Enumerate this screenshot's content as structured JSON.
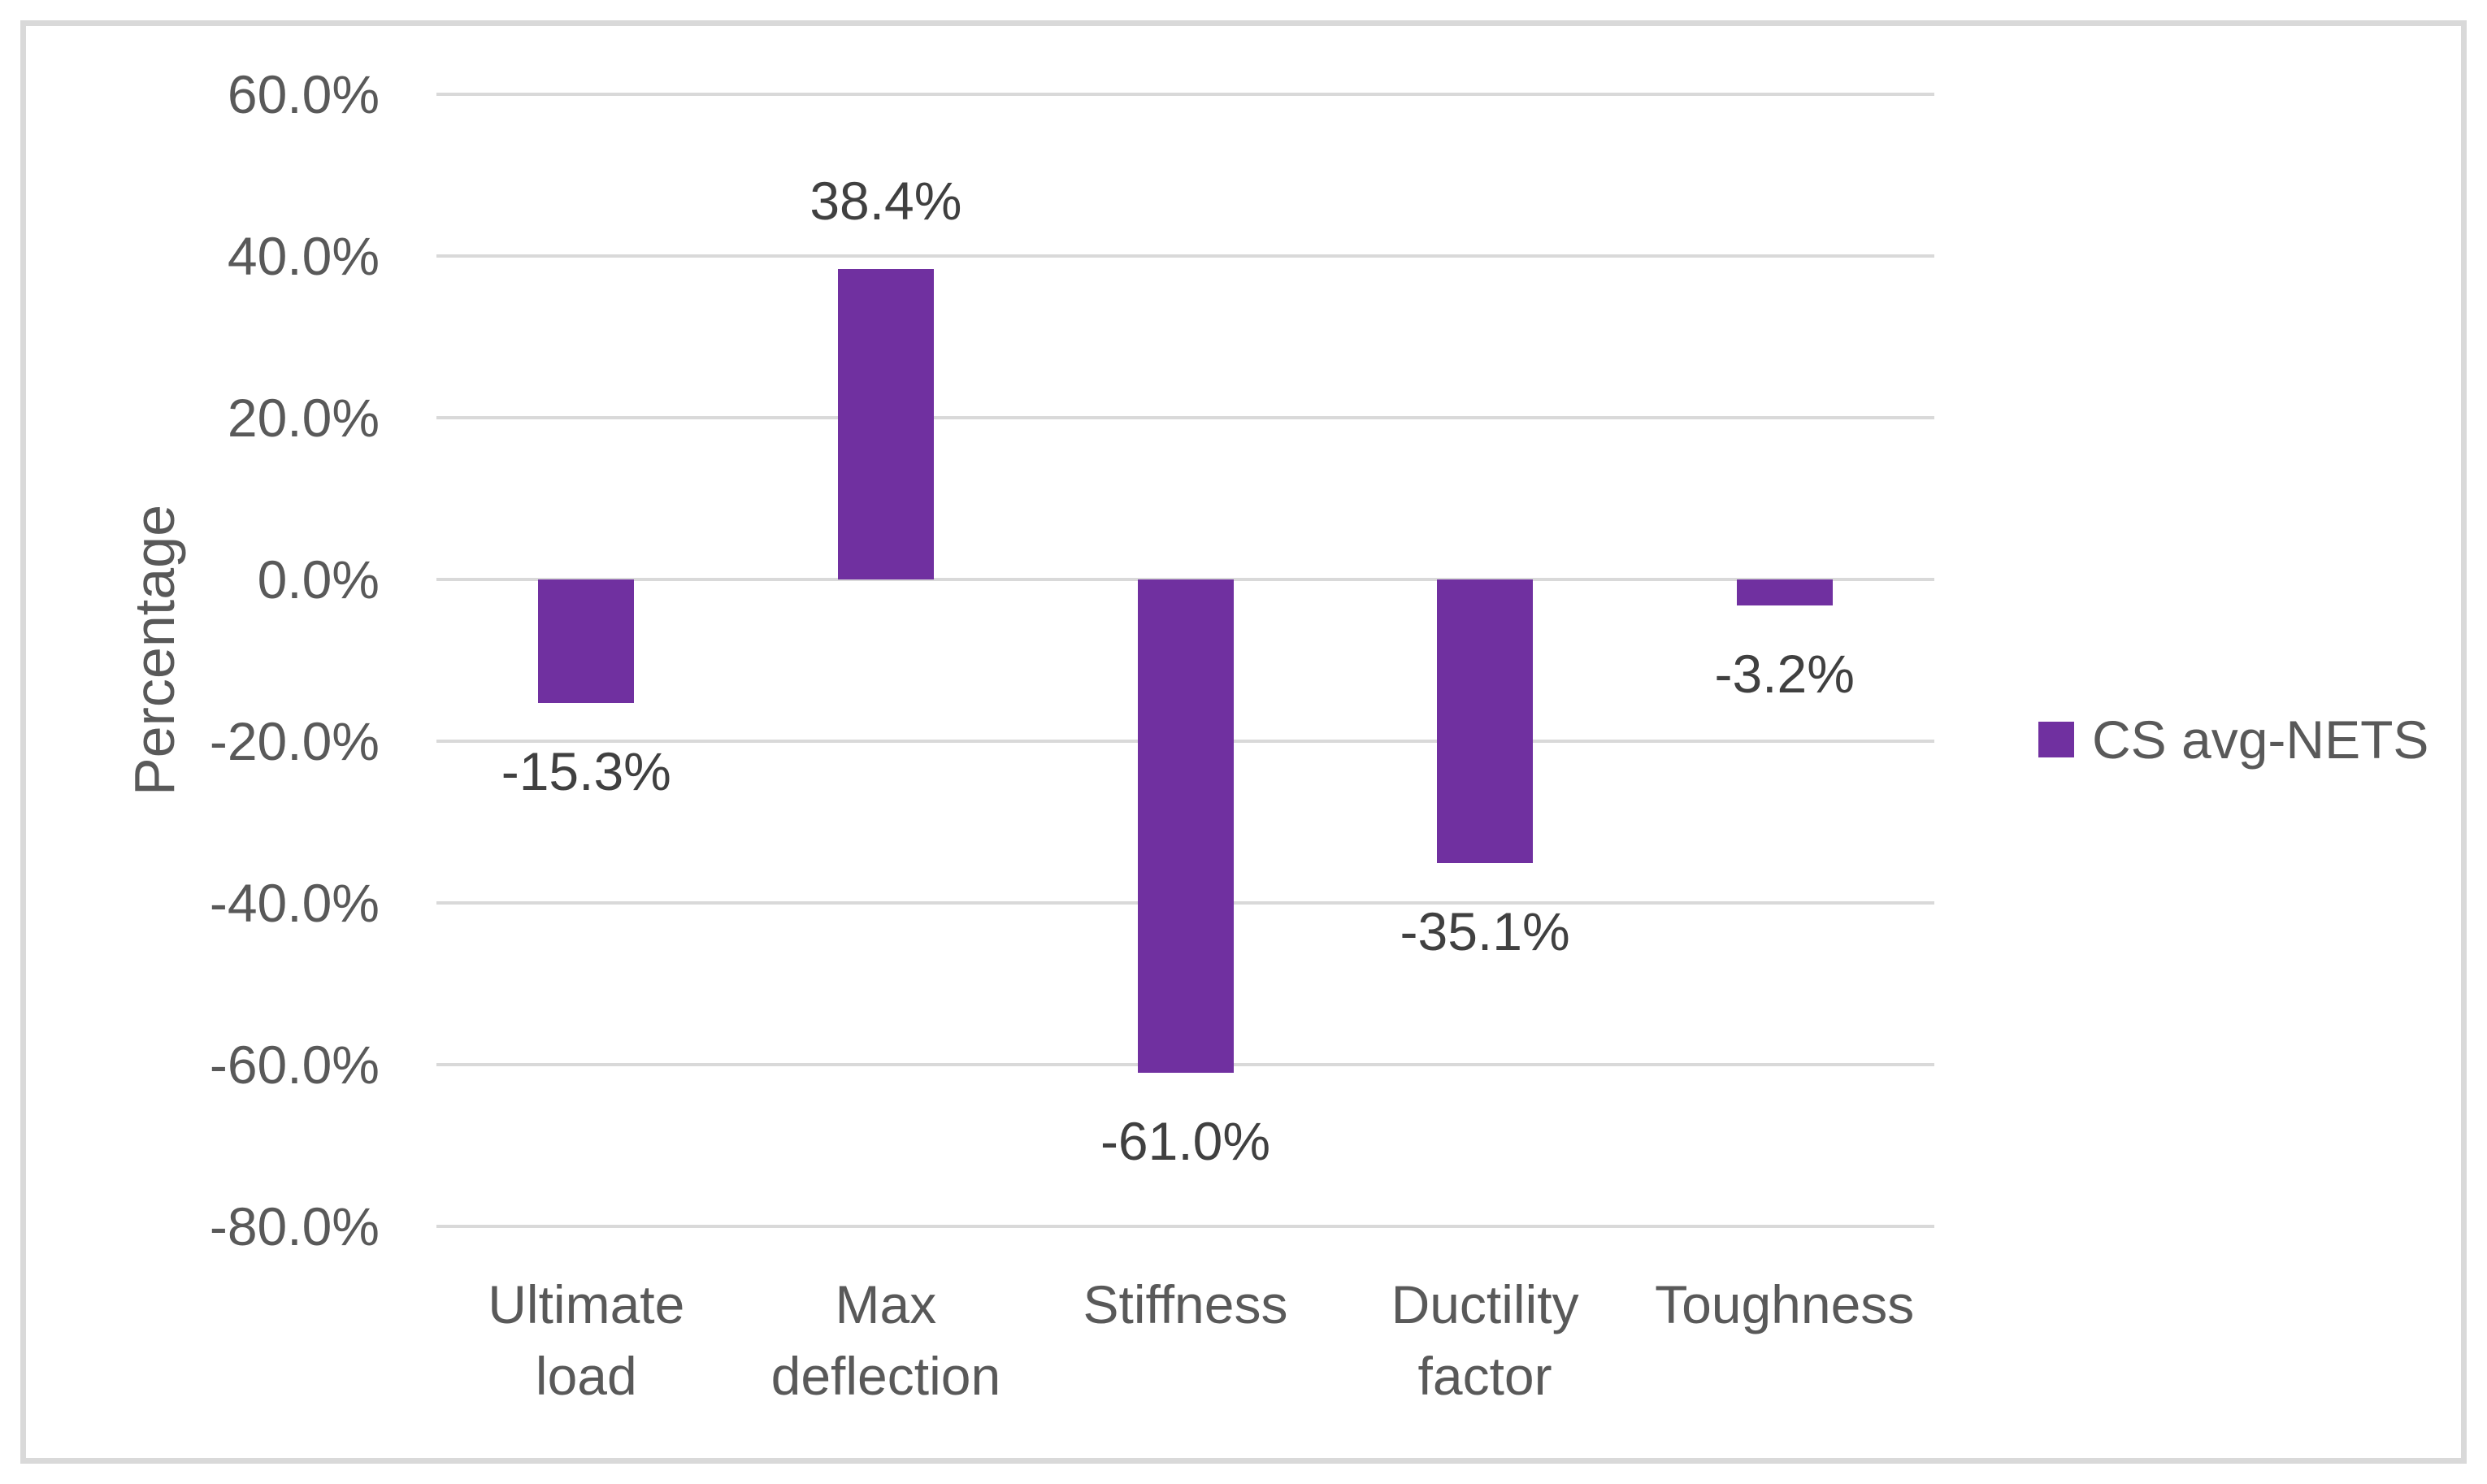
{
  "chart_data": {
    "type": "bar",
    "title": "",
    "ylabel": "Percentage",
    "categories": [
      "Ultimate load",
      "Max deflection",
      "Stiffness",
      "Ductility factor",
      "Toughness"
    ],
    "category_lines": [
      [
        "Ultimate",
        "load"
      ],
      [
        "Max",
        "deflection"
      ],
      [
        "Stiffness"
      ],
      [
        "Ductility",
        "factor"
      ],
      [
        "Toughness"
      ]
    ],
    "series": [
      {
        "name": "CS avg-NETS",
        "values": [
          -15.3,
          38.4,
          -61.0,
          -35.1,
          -3.2
        ]
      }
    ],
    "data_labels": [
      "-15.3%",
      "38.4%",
      "-61.0%",
      "-35.1%",
      "-3.2%"
    ],
    "y_ticks": [
      "60.0%",
      "40.0%",
      "20.0%",
      "0.0%",
      "-20.0%",
      "-40.0%",
      "-60.0%",
      "-80.0%"
    ],
    "y_tick_values": [
      60,
      40,
      20,
      0,
      -20,
      -40,
      -60,
      -80
    ],
    "ylim": [
      -80,
      60
    ],
    "grid": true,
    "legend_position": "right",
    "colors": {
      "bar": "#7030A0",
      "gridline": "#D9D9D9",
      "border": "#D9D9D9",
      "axis_text": "#595959",
      "data_label_text": "#404040"
    }
  }
}
